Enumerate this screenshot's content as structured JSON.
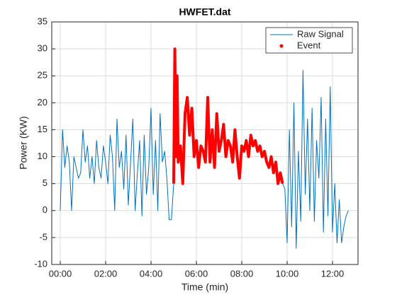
{
  "chart_data": {
    "type": "line",
    "title": "HWFET.dat",
    "xlabel": "Time (min)",
    "ylabel": "Power (KW)",
    "xlim": [
      -0.375,
      13.125
    ],
    "ylim": [
      -10,
      35
    ],
    "xticks": [
      {
        "value": 0,
        "label": "00:00"
      },
      {
        "value": 2,
        "label": "02:00"
      },
      {
        "value": 4,
        "label": "04:00"
      },
      {
        "value": 6,
        "label": "06:00"
      },
      {
        "value": 8,
        "label": "08:00"
      },
      {
        "value": 10,
        "label": "10:00"
      },
      {
        "value": 12,
        "label": "12:00"
      }
    ],
    "yticks": [
      -10,
      -5,
      0,
      5,
      10,
      15,
      20,
      25,
      30,
      35
    ],
    "grid": true,
    "legend": "northeast",
    "series": [
      {
        "name": "Raw Signal",
        "color": "#0072bd",
        "x": [
          0,
          0.1,
          0.2,
          0.3,
          0.4,
          0.5,
          0.6,
          0.7,
          0.8,
          0.9,
          1,
          1.1,
          1.2,
          1.3,
          1.4,
          1.5,
          1.6,
          1.7,
          1.8,
          1.9,
          2,
          2.1,
          2.2,
          2.3,
          2.4,
          2.5,
          2.6,
          2.7,
          2.8,
          2.9,
          3,
          3.1,
          3.2,
          3.3,
          3.4,
          3.5,
          3.6,
          3.7,
          3.8,
          3.9,
          4,
          4.1,
          4.2,
          4.3,
          4.4,
          4.5,
          4.6,
          4.7,
          4.8,
          4.9,
          5,
          5.05,
          5.1,
          5.15,
          5.2,
          5.3,
          5.4,
          5.5,
          5.6,
          5.7,
          5.8,
          5.9,
          6,
          6.1,
          6.2,
          6.3,
          6.4,
          6.5,
          6.6,
          6.7,
          6.8,
          6.9,
          7,
          7.1,
          7.2,
          7.3,
          7.4,
          7.5,
          7.6,
          7.7,
          7.8,
          7.9,
          8,
          8.1,
          8.2,
          8.3,
          8.4,
          8.5,
          8.6,
          8.7,
          8.8,
          8.9,
          9,
          9.1,
          9.2,
          9.3,
          9.4,
          9.5,
          9.6,
          9.7,
          9.8,
          9.9,
          10,
          10.1,
          10.2,
          10.3,
          10.4,
          10.5,
          10.6,
          10.7,
          10.8,
          10.9,
          11,
          11.1,
          11.2,
          11.3,
          11.4,
          11.5,
          11.6,
          11.7,
          11.8,
          11.9,
          12,
          12.1,
          12.2,
          12.3,
          12.4,
          12.5,
          12.6,
          12.7
        ],
        "values": [
          0,
          15,
          8,
          12,
          9,
          0,
          10,
          8,
          6,
          7,
          15,
          9,
          12,
          6,
          10,
          5,
          13,
          8,
          6,
          12,
          9,
          5,
          14,
          10,
          0,
          17,
          8,
          11,
          4,
          14,
          1,
          9,
          17,
          0,
          7,
          13,
          -1,
          14,
          3,
          8,
          19,
          3,
          13,
          0,
          18,
          9,
          11,
          6,
          -1.7,
          -1.7,
          5,
          30,
          10,
          25,
          9,
          12,
          5,
          18,
          21,
          14,
          19,
          10,
          13,
          8,
          12,
          11,
          9,
          21,
          9,
          15,
          8,
          18,
          11,
          13,
          16,
          10,
          13,
          12,
          9,
          15,
          10,
          6,
          12,
          11,
          13,
          10,
          14,
          12,
          13,
          11,
          12,
          10,
          11,
          9,
          8,
          10,
          7,
          9,
          5,
          7,
          5,
          4,
          -6,
          15,
          -3,
          20,
          -7,
          11,
          -2,
          26,
          3,
          17,
          0,
          19,
          -2,
          13,
          6,
          21,
          -4,
          17,
          -1,
          23,
          -4,
          5,
          -6,
          2,
          -6,
          -3,
          -1,
          0
        ]
      },
      {
        "name": "Event",
        "color": "#ff0000",
        "x": [
          5,
          5.05,
          5.1,
          5.15,
          5.2,
          5.3,
          5.4,
          5.5,
          5.6,
          5.7,
          5.8,
          5.9,
          6,
          6.1,
          6.2,
          6.3,
          6.4,
          6.5,
          6.6,
          6.7,
          6.8,
          6.9,
          7,
          7.1,
          7.2,
          7.3,
          7.4,
          7.5,
          7.6,
          7.7,
          7.8,
          7.9,
          8,
          8.1,
          8.2,
          8.3,
          8.4,
          8.5,
          8.6,
          8.7,
          8.8,
          8.9,
          9,
          9.1,
          9.2,
          9.3,
          9.4,
          9.5,
          9.6,
          9.7,
          9.8
        ],
        "values": [
          5,
          30,
          10,
          25,
          9,
          12,
          5,
          18,
          21,
          14,
          19,
          10,
          13,
          8,
          12,
          11,
          9,
          21,
          9,
          15,
          8,
          18,
          11,
          13,
          16,
          10,
          13,
          12,
          9,
          15,
          10,
          6,
          12,
          11,
          13,
          10,
          14,
          12,
          13,
          11,
          12,
          10,
          11,
          9,
          8,
          10,
          7,
          9,
          5,
          7,
          5
        ]
      }
    ]
  }
}
